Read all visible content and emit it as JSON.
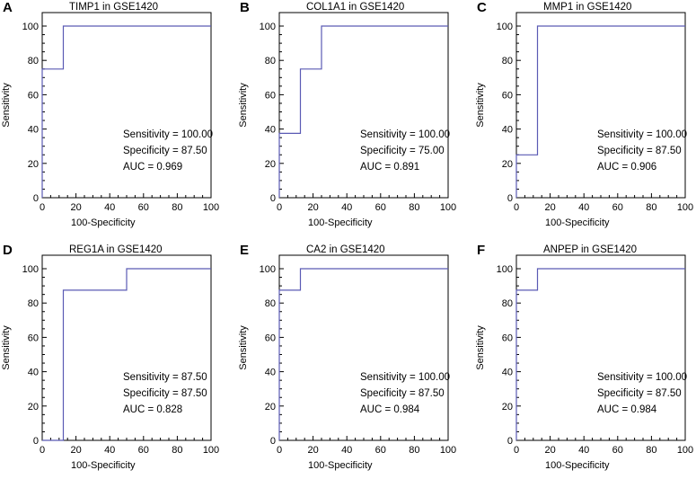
{
  "chart_data": [
    {
      "type": "line",
      "letter": "A",
      "title": "TIMP1 in GSE1420",
      "xlabel": "100-Specificity",
      "ylabel": "Sensitivity",
      "xlim": [
        0,
        100
      ],
      "ylim": [
        0,
        100
      ],
      "xticks": [
        "0",
        "20",
        "40",
        "60",
        "80",
        "100"
      ],
      "yticks": [
        "0",
        "20",
        "40",
        "60",
        "80",
        "100"
      ],
      "series": [
        {
          "x": [
            0,
            0,
            12.5,
            12.5,
            100
          ],
          "y": [
            0,
            75,
            75,
            100,
            100
          ]
        }
      ],
      "stats": [
        "Sensitivity = 100.00",
        "Specificity = 87.50",
        "AUC = 0.969"
      ]
    },
    {
      "type": "line",
      "letter": "B",
      "title": "COL1A1 in GSE1420",
      "xlabel": "100-Specificity",
      "ylabel": "Sensitivity",
      "xlim": [
        0,
        100
      ],
      "ylim": [
        0,
        100
      ],
      "xticks": [
        "0",
        "20",
        "40",
        "60",
        "80",
        "100"
      ],
      "yticks": [
        "0",
        "20",
        "40",
        "60",
        "80",
        "100"
      ],
      "series": [
        {
          "x": [
            0,
            0,
            12.5,
            12.5,
            25,
            25,
            100
          ],
          "y": [
            0,
            37.5,
            37.5,
            75,
            75,
            100,
            100
          ]
        }
      ],
      "stats": [
        "Sensitivity = 100.00",
        "Specificity = 75.00",
        "AUC = 0.891"
      ]
    },
    {
      "type": "line",
      "letter": "C",
      "title": "MMP1 in GSE1420",
      "xlabel": "100-Specificity",
      "ylabel": "Sensitivity",
      "xlim": [
        0,
        100
      ],
      "ylim": [
        0,
        100
      ],
      "xticks": [
        "0",
        "20",
        "40",
        "60",
        "80",
        "100"
      ],
      "yticks": [
        "0",
        "20",
        "40",
        "60",
        "80",
        "100"
      ],
      "series": [
        {
          "x": [
            0,
            0,
            12.5,
            12.5,
            100
          ],
          "y": [
            0,
            25,
            25,
            100,
            100
          ]
        }
      ],
      "stats": [
        "Sensitivity = 100.00",
        "Specificity = 87.50",
        "AUC = 0.906"
      ]
    },
    {
      "type": "line",
      "letter": "D",
      "title": "REG1A in GSE1420",
      "xlabel": "100-Specificity",
      "ylabel": "Sensitivity",
      "xlim": [
        0,
        100
      ],
      "ylim": [
        0,
        100
      ],
      "xticks": [
        "0",
        "20",
        "40",
        "60",
        "80",
        "100"
      ],
      "yticks": [
        "0",
        "20",
        "40",
        "60",
        "80",
        "100"
      ],
      "series": [
        {
          "x": [
            0,
            12.5,
            12.5,
            50,
            50,
            100
          ],
          "y": [
            0,
            0,
            87.5,
            87.5,
            100,
            100
          ]
        }
      ],
      "stats": [
        "Sensitivity = 87.50",
        "Specificity = 87.50",
        "AUC = 0.828"
      ]
    },
    {
      "type": "line",
      "letter": "E",
      "title": "CA2 in GSE1420",
      "xlabel": "100-Specificity",
      "ylabel": "Sensitivity",
      "xlim": [
        0,
        100
      ],
      "ylim": [
        0,
        100
      ],
      "xticks": [
        "0",
        "20",
        "40",
        "60",
        "80",
        "100"
      ],
      "yticks": [
        "0",
        "20",
        "40",
        "60",
        "80",
        "100"
      ],
      "series": [
        {
          "x": [
            0,
            0,
            12.5,
            12.5,
            100
          ],
          "y": [
            0,
            87.5,
            87.5,
            100,
            100
          ]
        }
      ],
      "stats": [
        "Sensitivity = 100.00",
        "Specificity = 87.50",
        "AUC = 0.984"
      ]
    },
    {
      "type": "line",
      "letter": "F",
      "title": "ANPEP in GSE1420",
      "xlabel": "100-Specificity",
      "ylabel": "Sensitivity",
      "xlim": [
        0,
        100
      ],
      "ylim": [
        0,
        100
      ],
      "xticks": [
        "0",
        "20",
        "40",
        "60",
        "80",
        "100"
      ],
      "yticks": [
        "0",
        "20",
        "40",
        "60",
        "80",
        "100"
      ],
      "series": [
        {
          "x": [
            0,
            0,
            12.5,
            12.5,
            100
          ],
          "y": [
            0,
            87.5,
            87.5,
            100,
            100
          ]
        }
      ],
      "stats": [
        "Sensitivity = 100.00",
        "Specificity = 87.50",
        "AUC = 0.984"
      ]
    }
  ]
}
